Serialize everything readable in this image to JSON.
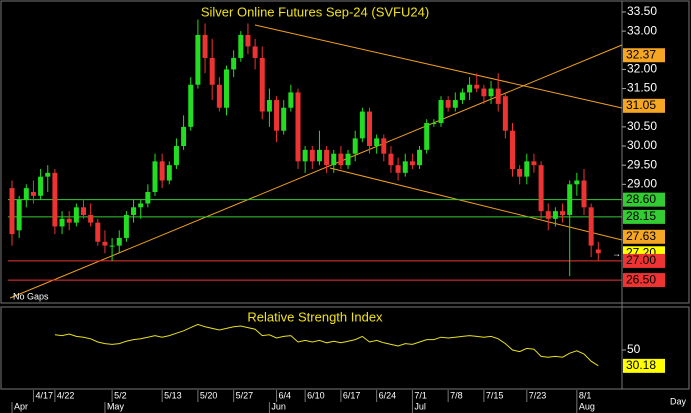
{
  "chart_data": [
    {
      "type": "candlestick",
      "title": "Silver Online Futures Sep-24 (SVFU24)",
      "note": "No Gaps",
      "x_axis_label": "Day",
      "categories": [
        null,
        null,
        null,
        "4/17",
        null,
        null,
        "4/22",
        null,
        null,
        null,
        null,
        null,
        null,
        null,
        "5/2",
        null,
        null,
        null,
        null,
        null,
        null,
        "5/13",
        null,
        null,
        null,
        null,
        "5/20",
        null,
        null,
        null,
        null,
        "5/27",
        null,
        null,
        null,
        null,
        null,
        "6/4",
        null,
        null,
        null,
        "6/10",
        null,
        null,
        null,
        null,
        "6/17",
        null,
        null,
        null,
        null,
        "6/24",
        null,
        null,
        null,
        null,
        "7/1",
        null,
        null,
        null,
        null,
        "7/8",
        null,
        null,
        null,
        null,
        "7/15",
        null,
        null,
        null,
        null,
        null,
        "7/23",
        null,
        null,
        null,
        null,
        null,
        null,
        "8/1",
        null,
        null,
        null
      ],
      "months": [
        "Apr",
        null,
        null,
        null,
        null,
        null,
        null,
        null,
        null,
        null,
        null,
        null,
        null,
        "May",
        null,
        null,
        null,
        null,
        null,
        null,
        null,
        null,
        null,
        null,
        null,
        null,
        null,
        null,
        null,
        null,
        null,
        null,
        null,
        null,
        null,
        null,
        "Jun",
        null,
        null,
        null,
        null,
        null,
        null,
        null,
        null,
        null,
        null,
        null,
        null,
        null,
        null,
        null,
        null,
        null,
        null,
        null,
        "Jul",
        null,
        null,
        null,
        null,
        null,
        null,
        null,
        null,
        null,
        null,
        null,
        null,
        null,
        null,
        null,
        null,
        null,
        null,
        null,
        null,
        null,
        null,
        "Aug",
        null,
        null,
        null
      ],
      "open": [
        28.9,
        27.8,
        28.6,
        28.8,
        28.7,
        29.2,
        29.3,
        27.9,
        28.1,
        28.0,
        28.4,
        28.2,
        28.0,
        27.5,
        27.4,
        27.4,
        27.6,
        28.2,
        28.4,
        28.5,
        28.8,
        29.6,
        29.1,
        29.5,
        30.0,
        30.5,
        31.6,
        32.9,
        32.3,
        31.6,
        31.0,
        32.0,
        32.3,
        32.9,
        32.6,
        32.3,
        30.9,
        31.2,
        30.4,
        31.0,
        31.4,
        29.6,
        29.9,
        29.6,
        29.9,
        29.5,
        29.8,
        29.5,
        29.8,
        30.2,
        30.9,
        30.0,
        30.2,
        29.8,
        29.5,
        29.3,
        29.6,
        29.5,
        29.9,
        30.6,
        30.6,
        31.2,
        31.0,
        31.2,
        31.4,
        31.6,
        31.5,
        31.3,
        31.5,
        31.3,
        30.4,
        29.4,
        29.2,
        29.6,
        29.5,
        28.3,
        28.1,
        28.3,
        28.2,
        29.0,
        29.1,
        28.4,
        27.3
      ],
      "high": [
        29.1,
        28.7,
        29.0,
        29.1,
        29.4,
        29.5,
        29.4,
        28.3,
        28.3,
        28.5,
        28.6,
        28.5,
        28.1,
        27.8,
        27.6,
        27.8,
        28.3,
        28.6,
        28.6,
        29.0,
        29.8,
        29.8,
        29.6,
        30.2,
        30.8,
        31.8,
        33.3,
        33.2,
        32.8,
        31.8,
        32.1,
        32.5,
        33.0,
        33.2,
        32.8,
        32.6,
        31.5,
        31.3,
        31.2,
        31.6,
        31.5,
        30.0,
        30.0,
        30.4,
        30.0,
        29.9,
        30.0,
        29.9,
        30.4,
        31.0,
        31.0,
        30.3,
        30.3,
        30.0,
        29.7,
        29.8,
        29.8,
        30.0,
        30.7,
        30.7,
        31.3,
        31.3,
        31.4,
        31.5,
        31.8,
        31.9,
        31.6,
        31.7,
        31.9,
        31.4,
        30.6,
        29.5,
        29.8,
        29.8,
        29.6,
        28.5,
        28.4,
        28.5,
        29.1,
        29.3,
        29.4,
        28.5,
        27.5
      ],
      "low": [
        27.4,
        27.6,
        28.4,
        28.5,
        28.6,
        28.8,
        27.7,
        27.7,
        27.8,
        27.9,
        28.1,
        27.9,
        27.4,
        27.2,
        27.0,
        27.2,
        27.5,
        28.0,
        28.1,
        28.4,
        28.7,
        28.9,
        29.0,
        29.4,
        29.9,
        30.4,
        31.5,
        31.9,
        31.2,
        30.9,
        30.8,
        31.8,
        32.2,
        32.4,
        32.0,
        30.7,
        30.5,
        30.1,
        30.3,
        30.9,
        29.4,
        29.3,
        29.4,
        29.5,
        29.3,
        29.3,
        29.4,
        29.4,
        29.6,
        30.1,
        29.8,
        29.8,
        29.6,
        29.3,
        29.1,
        29.2,
        29.4,
        29.4,
        29.8,
        30.5,
        30.5,
        30.9,
        30.9,
        31.1,
        31.2,
        31.4,
        31.1,
        31.1,
        30.9,
        30.2,
        29.2,
        29.0,
        29.0,
        29.3,
        28.1,
        27.8,
        27.9,
        28.0,
        26.6,
        28.7,
        28.2,
        27.1,
        27.0
      ],
      "close": [
        27.7,
        28.6,
        28.9,
        28.7,
        29.2,
        29.3,
        27.9,
        28.1,
        28.0,
        28.4,
        28.2,
        28.0,
        27.5,
        27.4,
        27.4,
        27.6,
        28.2,
        28.4,
        28.5,
        28.8,
        29.6,
        29.1,
        29.5,
        30.0,
        30.5,
        31.6,
        32.9,
        32.3,
        31.6,
        31.0,
        32.0,
        32.3,
        32.9,
        32.6,
        32.3,
        30.9,
        31.2,
        30.4,
        31.0,
        31.4,
        29.6,
        29.9,
        29.6,
        29.9,
        29.5,
        29.8,
        29.5,
        29.8,
        30.2,
        30.9,
        30.0,
        30.2,
        29.8,
        29.5,
        29.3,
        29.6,
        29.5,
        29.9,
        30.6,
        30.6,
        31.2,
        31.0,
        31.2,
        31.4,
        31.6,
        31.5,
        31.3,
        31.5,
        31.1,
        30.4,
        29.4,
        29.2,
        29.6,
        29.5,
        28.3,
        28.1,
        28.3,
        28.2,
        29.0,
        29.1,
        28.4,
        27.4,
        27.2
      ],
      "up_color": "#22dd22",
      "down_color": "#ee3333",
      "ylim": [
        25.98,
        33.76
      ],
      "yticks": [
        {
          "value": 33.5,
          "label": "33.50"
        },
        {
          "value": 33,
          "label": "33.00"
        },
        {
          "value": 32,
          "label": "32.00"
        },
        {
          "value": 31.5,
          "label": "31.50"
        },
        {
          "value": 30.5,
          "label": "30.50"
        },
        {
          "value": 30,
          "label": "30.00"
        },
        {
          "value": 29.5,
          "label": "29.50"
        },
        {
          "value": 29,
          "label": "29.00"
        }
      ],
      "price_labels": [
        {
          "value": 32.37,
          "label": "32.37",
          "color": "#f5a623"
        },
        {
          "value": 31.05,
          "label": "31.05",
          "color": "#f5a623"
        },
        {
          "value": 28.6,
          "label": "28.60",
          "color": "#33cc33",
          "hline": true
        },
        {
          "value": 28.15,
          "label": "28.15",
          "color": "#33cc33",
          "hline": true
        },
        {
          "value": 27.63,
          "label": "27.63",
          "color": "#f5a623"
        },
        {
          "value": 27.2,
          "label": "27.20",
          "color": "#ffff00"
        },
        {
          "value": 27,
          "label": "27.00",
          "color": "#ee3333",
          "hline": true
        },
        {
          "value": 26.5,
          "label": "26.50",
          "color": "#ee3333",
          "hline": true
        }
      ]
    },
    {
      "type": "line",
      "title": "Relative Strength Index",
      "color": "#e8e020",
      "ylim": [
        0,
        100
      ],
      "yticks": [
        50
      ],
      "values": [
        null,
        null,
        null,
        null,
        null,
        null,
        69,
        68,
        70,
        67,
        66,
        64,
        60,
        58,
        57,
        58,
        61,
        63,
        64,
        66,
        68,
        66,
        68,
        71,
        74,
        78,
        82,
        79,
        77,
        75,
        77,
        79,
        80,
        78,
        76,
        68,
        69,
        65,
        67,
        68,
        60,
        62,
        60,
        62,
        59,
        61,
        59,
        61,
        63,
        67,
        60,
        62,
        59,
        57,
        55,
        58,
        57,
        60,
        63,
        63,
        66,
        65,
        66,
        67,
        68,
        67,
        66,
        67,
        64,
        58,
        50,
        48,
        52,
        51,
        42,
        41,
        42,
        41,
        46,
        49,
        45,
        36,
        30.18
      ]
    }
  ]
}
